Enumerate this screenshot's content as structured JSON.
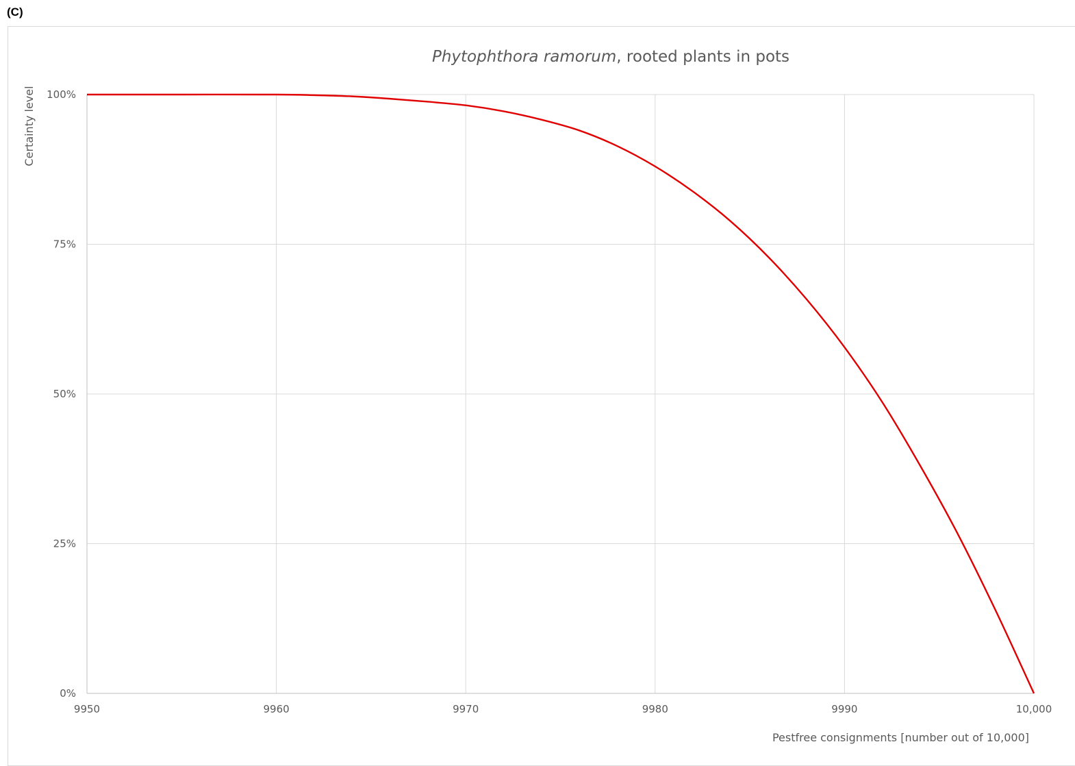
{
  "panel_label": "(C)",
  "chart_data": {
    "type": "line",
    "title_italic": "Phytophthora ramorum",
    "title_rest": ", rooted plants in pots",
    "xlabel": "Pestfree consignments [number out of 10,000]",
    "ylabel": "Certainty level",
    "xlim": [
      9950,
      10000
    ],
    "ylim": [
      0,
      1
    ],
    "x_ticks": [
      9950,
      9960,
      9970,
      9980,
      9990,
      10000
    ],
    "x_tick_labels": [
      "9950",
      "9960",
      "9970",
      "9980",
      "9990",
      "10,000"
    ],
    "y_ticks": [
      0,
      0.25,
      0.5,
      0.75,
      1
    ],
    "y_tick_labels": [
      "0%",
      "25%",
      "50%",
      "75%",
      "100%"
    ],
    "grid": true,
    "series": [
      {
        "color": "#e00000",
        "x": [
          9950,
          9955,
          9960,
          9962,
          9964,
          9966,
          9968,
          9970,
          9972,
          9974,
          9976,
          9978,
          9980,
          9982,
          9984,
          9986,
          9988,
          9990,
          9992,
          9994,
          9996,
          9998,
          10000
        ],
        "y": [
          1.0,
          1.0,
          1.0,
          0.999,
          0.997,
          0.993,
          0.988,
          0.982,
          0.972,
          0.958,
          0.94,
          0.914,
          0.88,
          0.838,
          0.788,
          0.728,
          0.658,
          0.578,
          0.486,
          0.38,
          0.265,
          0.137,
          0.0
        ]
      }
    ]
  }
}
